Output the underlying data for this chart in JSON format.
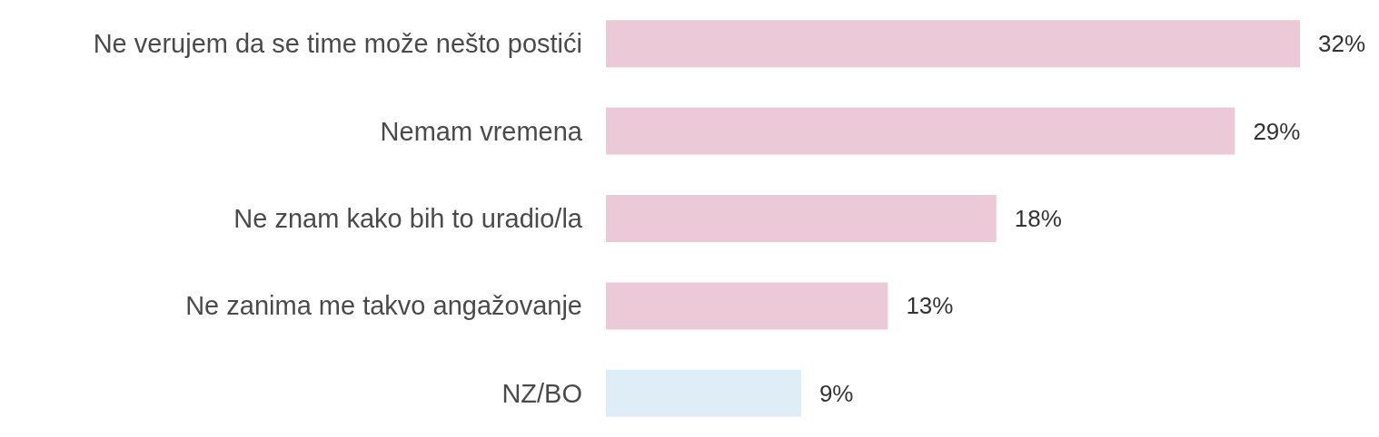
{
  "chart_data": {
    "type": "bar",
    "orientation": "horizontal",
    "categories": [
      "Ne verujem da se time može nešto postići",
      "Nemam vremena",
      "Ne znam kako bih to uradio/la",
      "Ne zanima me takvo angažovanje",
      "NZ/BO"
    ],
    "values": [
      32,
      29,
      18,
      13,
      9
    ],
    "colors": [
      "#ecc9d6",
      "#ecc9d6",
      "#ecc9d6",
      "#ecc9d6",
      "#deedf6"
    ],
    "value_labels": [
      "32%",
      "29%",
      "18%",
      "13%",
      "9%"
    ]
  }
}
